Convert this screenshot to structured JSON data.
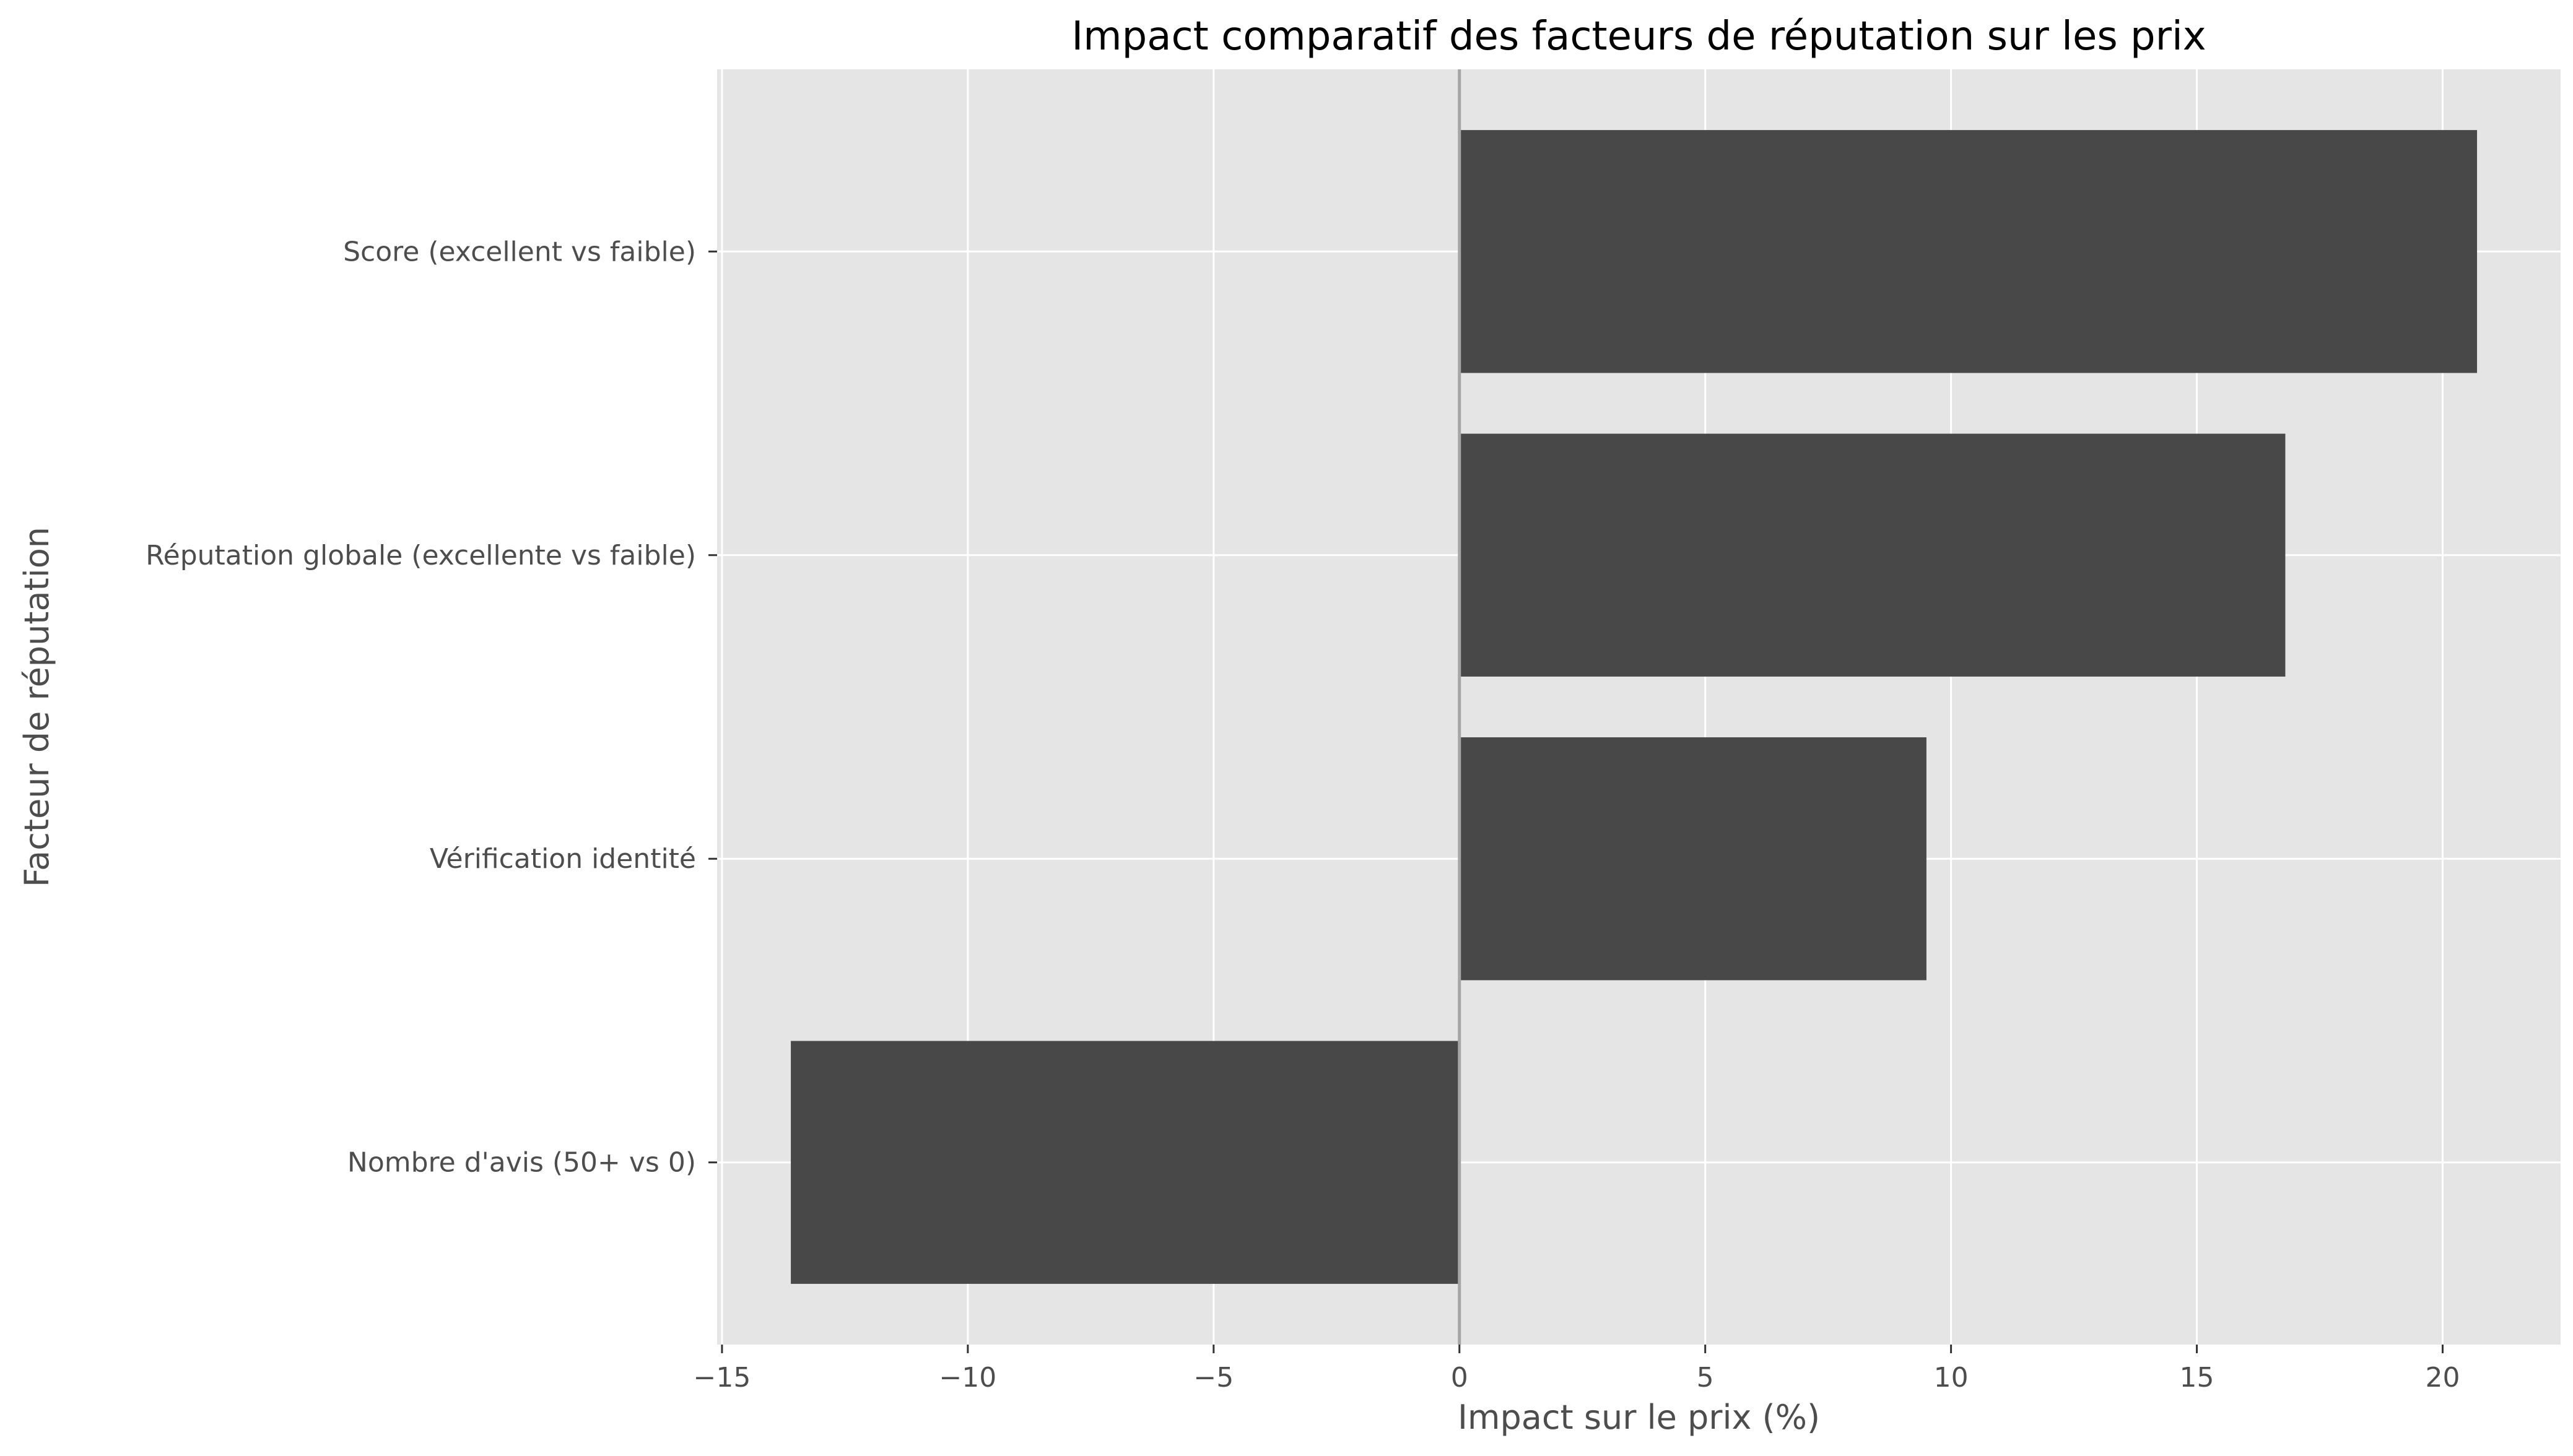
{
  "chart_data": {
    "type": "bar",
    "orientation": "horizontal",
    "title": "Impact comparatif des facteurs de réputation sur les prix",
    "xlabel": "Impact sur le prix (%)",
    "ylabel": "Facteur de réputation",
    "categories": [
      "Score (excellent vs faible)",
      "Réputation globale (excellente vs faible)",
      "Vérification identité",
      "Nombre d'avis (50+ vs 0)"
    ],
    "values": [
      20.7,
      16.8,
      9.5,
      -13.6
    ],
    "xlim": [
      -15.1,
      22.4
    ],
    "xticks": [
      -15,
      -10,
      -5,
      0,
      5,
      10,
      15,
      20
    ],
    "xtick_labels": [
      "−15",
      "−10",
      "−5",
      "0",
      "5",
      "10",
      "15",
      "20"
    ],
    "grid": true,
    "legend": "none",
    "zero_line": true,
    "colors": {
      "bar": "#484848",
      "plot_background": "#e5e5e5",
      "grid": "#ffffff",
      "zero_line": "#a6a6a6",
      "axis_text": "#4d4d4d",
      "title_text": "#000000"
    }
  }
}
